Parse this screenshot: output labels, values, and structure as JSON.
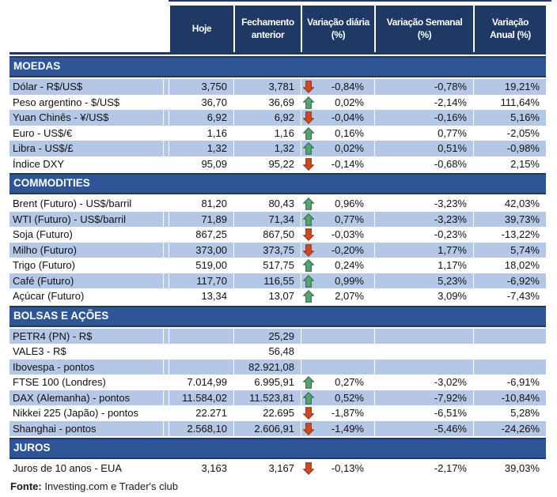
{
  "colors": {
    "header_bg": "#1F3864",
    "section_bg": "#2F5597",
    "row_shade": "#B5C7E6",
    "arrow_up": "#56A273",
    "arrow_up_border": "#35714E",
    "arrow_down": "#CB4A24",
    "arrow_down_border": "#97391D"
  },
  "chart_data": {
    "type": "table",
    "columns": [
      "Hoje",
      "Fechamento\nanterior",
      "Variação diária\n(%)",
      "Variação Semanal\n(%)",
      "Variação\nAnual (%)"
    ],
    "sections": [
      {
        "title": "MOEDAS",
        "shade_offset": 0,
        "rows": [
          {
            "label": "Dólar - R$/US$",
            "hoje": "3,750",
            "fechamento": "3,781",
            "arrow": "down",
            "diaria": "-0,84%",
            "semanal": "-0,78%",
            "anual": "19,21%"
          },
          {
            "label": "Peso argentino - $/US$",
            "hoje": "36,70",
            "fechamento": "36,69",
            "arrow": "up",
            "diaria": "0,02%",
            "semanal": "-2,14%",
            "anual": "111,64%"
          },
          {
            "label": "Yuan Chinês - ¥/US$",
            "hoje": "6,92",
            "fechamento": "6,92",
            "arrow": "down",
            "diaria": "-0,04%",
            "semanal": "-0,16%",
            "anual": "5,16%"
          },
          {
            "label": "Euro - US$/€",
            "hoje": "1,16",
            "fechamento": "1,16",
            "arrow": "up",
            "diaria": "0,16%",
            "semanal": "0,77%",
            "anual": "-2,05%"
          },
          {
            "label": "Libra - US$/£",
            "hoje": "1,32",
            "fechamento": "1,32",
            "arrow": "up",
            "diaria": "0,02%",
            "semanal": "0,51%",
            "anual": "-0,98%"
          },
          {
            "label": "Índice DXY",
            "hoje": "95,09",
            "fechamento": "95,22",
            "arrow": "down",
            "diaria": "-0,14%",
            "semanal": "-0,68%",
            "anual": "2,15%"
          }
        ]
      },
      {
        "title": "COMMODITIES",
        "shade_offset": 1,
        "rows": [
          {
            "label": "Brent (Futuro) - US$/barril",
            "hoje": "81,20",
            "fechamento": "80,43",
            "arrow": "up",
            "diaria": "0,96%",
            "semanal": "-3,23%",
            "anual": "42,03%"
          },
          {
            "label": "WTI (Futuro) - US$/barril",
            "hoje": "71,89",
            "fechamento": "71,34",
            "arrow": "up",
            "diaria": "0,77%",
            "semanal": "-3,23%",
            "anual": "39,73%"
          },
          {
            "label": "Soja (Futuro)",
            "hoje": "867,25",
            "fechamento": "867,50",
            "arrow": "down",
            "diaria": "-0,03%",
            "semanal": "-0,23%",
            "anual": "-13,22%"
          },
          {
            "label": "Milho (Futuro)",
            "hoje": "373,00",
            "fechamento": "373,75",
            "arrow": "down",
            "diaria": "-0,20%",
            "semanal": "1,77%",
            "anual": "5,74%"
          },
          {
            "label": "Trigo (Futuro)",
            "hoje": "519,00",
            "fechamento": "517,75",
            "arrow": "up",
            "diaria": "0,24%",
            "semanal": "1,17%",
            "anual": "18,02%"
          },
          {
            "label": "Café (Futuro)",
            "hoje": "117,70",
            "fechamento": "116,55",
            "arrow": "up",
            "diaria": "0,99%",
            "semanal": "5,23%",
            "anual": "-6,92%"
          },
          {
            "label": "Açúcar (Futuro)",
            "hoje": "13,34",
            "fechamento": "13,07",
            "arrow": "up",
            "diaria": "2,07%",
            "semanal": "3,09%",
            "anual": "-7,43%"
          }
        ]
      },
      {
        "title": "BOLSAS E AÇÕES",
        "shade_offset": 0,
        "rows": [
          {
            "label": "PETR4 (PN) - R$",
            "hoje": "",
            "fechamento": "25,29",
            "arrow": null,
            "diaria": "",
            "semanal": "",
            "anual": ""
          },
          {
            "label": "VALE3 - R$",
            "hoje": "",
            "fechamento": "56,48",
            "arrow": null,
            "diaria": "",
            "semanal": "",
            "anual": ""
          },
          {
            "label": "Ibovespa - pontos",
            "hoje": "",
            "fechamento": "82.921,08",
            "arrow": null,
            "diaria": "",
            "semanal": "",
            "anual": ""
          },
          {
            "label": "FTSE 100 (Londres)",
            "hoje": "7.014,99",
            "fechamento": "6.995,91",
            "arrow": "up",
            "diaria": "0,27%",
            "semanal": "-3,02%",
            "anual": "-6,91%"
          },
          {
            "label": "DAX (Alemanha) - pontos",
            "hoje": "11.584,02",
            "fechamento": "11.523,81",
            "arrow": "up",
            "diaria": "0,52%",
            "semanal": "-7,92%",
            "anual": "-10,84%"
          },
          {
            "label": "Nikkei 225 (Japão) - pontos",
            "hoje": "22.271",
            "fechamento": "22.695",
            "arrow": "down",
            "diaria": "-1,87%",
            "semanal": "-6,51%",
            "anual": "5,28%"
          },
          {
            "label": "Shanghai - pontos",
            "hoje": "2.568,10",
            "fechamento": "2.606,91",
            "arrow": "down",
            "diaria": "-1,49%",
            "semanal": "-5,46%",
            "anual": "-24,26%"
          }
        ]
      },
      {
        "title": "JUROS",
        "shade_offset": 1,
        "rows": [
          {
            "label": "Juros de 10 anos - EUA",
            "hoje": "3,163",
            "fechamento": "3,167",
            "arrow": "down",
            "diaria": "-0,13%",
            "semanal": "-2,17%",
            "anual": "39,03%"
          }
        ]
      }
    ]
  },
  "footer": {
    "label": "Fonte:",
    "text": " Investing.com e Trader's club"
  }
}
